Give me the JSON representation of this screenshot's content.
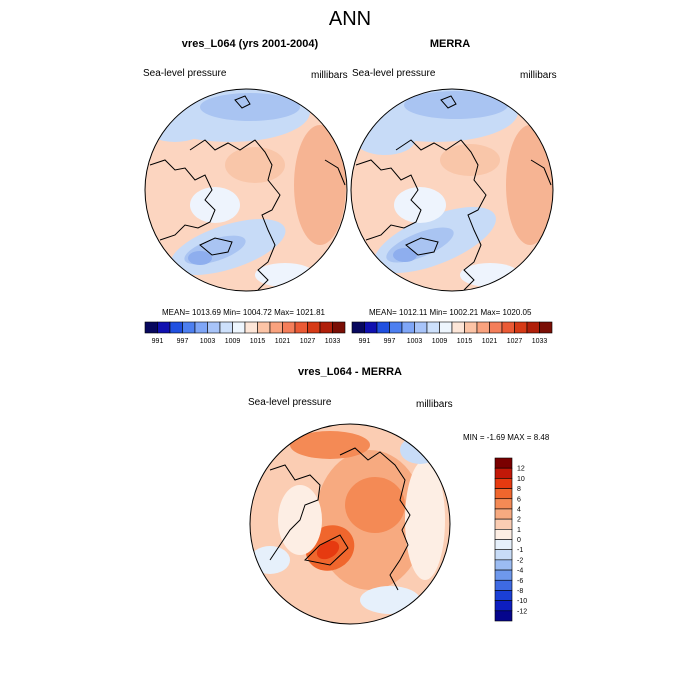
{
  "title": "ANN",
  "panels": [
    {
      "title": "vres_L064 (yrs 2001-2004)",
      "var_label": "Sea-level pressure",
      "units": "millibars",
      "stats": "MEAN= 1013.69  Min= 1004.72  Max= 1021.81"
    },
    {
      "title": "MERRA",
      "var_label": "Sea-level pressure",
      "units": "millibars",
      "stats": "MEAN= 1012.11  Min= 1002.21  Max= 1020.05"
    }
  ],
  "colorbar_top": {
    "ticks": [
      "991",
      "997",
      "1003",
      "1009",
      "1015",
      "1021",
      "1027",
      "1033"
    ],
    "colors": [
      "#08085e",
      "#1010b0",
      "#2050e0",
      "#4d7ff0",
      "#7fa6f7",
      "#a8c4f9",
      "#cde0fb",
      "#eef6fe",
      "#fde6d8",
      "#fcc4a6",
      "#f9a27e",
      "#f47e5a",
      "#eb5a35",
      "#d63a16",
      "#b01f0a",
      "#7a0e05"
    ]
  },
  "diff_panel": {
    "title": "vres_L064 - MERRA",
    "var_label": "Sea-level pressure",
    "units": "millibars",
    "stats": "MIN =  -1.69 MAX =   8.48"
  },
  "colorbar_diff": {
    "labels": [
      "12",
      "10",
      "8",
      "6",
      "4",
      "2",
      "1",
      "0",
      "-1",
      "-2",
      "-4",
      "-6",
      "-8",
      "-10",
      "-12"
    ],
    "colors": [
      "#7a0000",
      "#c21808",
      "#e63a10",
      "#f0662d",
      "#f48a55",
      "#f7aa80",
      "#fbcdb3",
      "#fdeee4",
      "#e6f0fb",
      "#c8dcf7",
      "#9cbcf2",
      "#6e98ec",
      "#3e6ae3",
      "#1a3fd6",
      "#0d1ec0",
      "#05058c"
    ]
  }
}
